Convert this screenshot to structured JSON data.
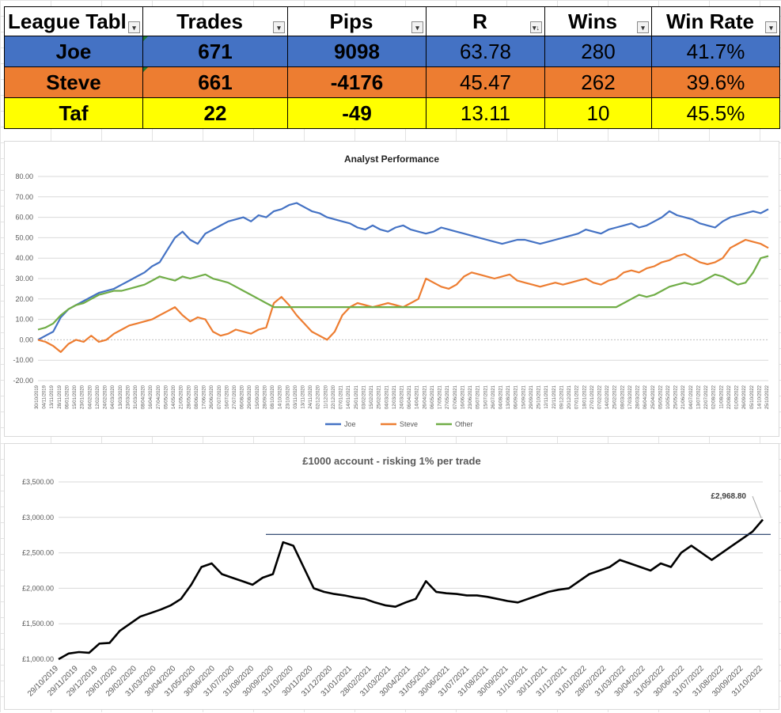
{
  "table": {
    "headers": [
      "League Tabl",
      "Trades",
      "Pips",
      "R",
      "Wins",
      "Win Rate"
    ],
    "rows": [
      {
        "name": "Joe",
        "trades": "671",
        "pips": "9098",
        "r": "63.78",
        "wins": "280",
        "win_rate": "41.7%"
      },
      {
        "name": "Steve",
        "trades": "661",
        "pips": "-4176",
        "r": "45.47",
        "wins": "262",
        "win_rate": "39.6%"
      },
      {
        "name": "Taf",
        "trades": "22",
        "pips": "-49",
        "r": "13.11",
        "wins": "10",
        "win_rate": "45.5%"
      }
    ]
  },
  "colors": {
    "joe": "#4472c4",
    "steve": "#ed7d31",
    "other": "#70ad47",
    "taf": "#ffff00",
    "equity": "#000000",
    "hline": "#1f3864"
  },
  "chart_data": [
    {
      "type": "line",
      "title": "Analyst Performance",
      "xlabel": "",
      "ylabel": "",
      "ylim": [
        -20,
        80
      ],
      "yticks": [
        "80.00",
        "70.00",
        "60.00",
        "50.00",
        "40.00",
        "30.00",
        "20.00",
        "10.00",
        "0.00",
        "-10.00",
        "-20.00"
      ],
      "grid": true,
      "legend_position": "bottom",
      "x_tick_labels": [
        "30/10/2019",
        "04/11/2019",
        "13/11/2019",
        "28/11/2019",
        "06/01/2020",
        "15/01/2020",
        "23/01/2020",
        "04/02/2020",
        "12/02/2020",
        "24/02/2020",
        "04/03/2020",
        "13/03/2020",
        "23/03/2020",
        "31/03/2020",
        "08/04/2020",
        "16/04/2020",
        "27/04/2020",
        "05/05/2020",
        "14/05/2020",
        "21/05/2020",
        "28/05/2020",
        "08/06/2020",
        "17/06/2020",
        "26/06/2020",
        "07/07/2020",
        "16/07/2020",
        "27/07/2020",
        "06/08/2020",
        "29/08/2020",
        "15/09/2020",
        "28/09/2020",
        "08/10/2020",
        "14/10/2020",
        "23/10/2020",
        "03/11/2020",
        "13/11/2020",
        "24/11/2020",
        "02/12/2020",
        "11/12/2020",
        "22/12/2020",
        "07/01/2021",
        "14/01/2021",
        "25/01/2021",
        "03/02/2021",
        "15/02/2021",
        "25/02/2021",
        "04/03/2021",
        "12/03/2021",
        "24/03/2021",
        "06/04/2021",
        "14/04/2021",
        "26/04/2021",
        "06/05/2021",
        "17/05/2021",
        "27/05/2021",
        "07/06/2021",
        "16/06/2021",
        "23/06/2021",
        "05/07/2021",
        "15/07/2021",
        "26/07/2021",
        "04/08/2021",
        "13/08/2021",
        "06/09/2021",
        "15/09/2021",
        "29/09/2021",
        "25/10/2021",
        "12/11/2021",
        "22/11/2021",
        "09/12/2021",
        "20/12/2021",
        "07/01/2022",
        "18/01/2022",
        "27/01/2022",
        "07/02/2022",
        "14/02/2022",
        "25/02/2022",
        "08/03/2022",
        "17/03/2022",
        "28/03/2022",
        "06/04/2022",
        "25/04/2022",
        "05/05/2022",
        "10/05/2022",
        "25/05/2022",
        "21/06/2022",
        "04/07/2022",
        "13/07/2022",
        "22/07/2022",
        "02/08/2022",
        "11/08/2022",
        "22/08/2022",
        "01/09/2022",
        "26/09/2022",
        "05/10/2022",
        "14/10/2022",
        "25/10/2022"
      ],
      "series": [
        {
          "name": "Joe",
          "color": "#4472c4",
          "values": [
            0,
            2,
            4,
            11,
            15,
            17,
            19,
            21,
            23,
            24,
            25,
            27,
            29,
            31,
            33,
            36,
            38,
            44,
            50,
            53,
            49,
            47,
            52,
            54,
            56,
            58,
            59,
            60,
            58,
            61,
            60,
            63,
            64,
            66,
            67,
            65,
            63,
            62,
            60,
            59,
            58,
            57,
            55,
            54,
            56,
            54,
            53,
            55,
            56,
            54,
            53,
            52,
            53,
            55,
            54,
            53,
            52,
            51,
            50,
            49,
            48,
            47,
            48,
            49,
            49,
            48,
            47,
            48,
            49,
            50,
            51,
            52,
            54,
            53,
            52,
            54,
            55,
            56,
            57,
            55,
            56,
            58,
            60,
            63,
            61,
            60,
            59,
            57,
            56,
            55,
            58,
            60,
            61,
            62,
            63,
            62,
            64
          ]
        },
        {
          "name": "Steve",
          "color": "#ed7d31",
          "values": [
            0,
            -1,
            -3,
            -6,
            -2,
            0,
            -1,
            2,
            -1,
            0,
            3,
            5,
            7,
            8,
            9,
            10,
            12,
            14,
            16,
            12,
            9,
            11,
            10,
            4,
            2,
            3,
            5,
            4,
            3,
            5,
            6,
            18,
            21,
            17,
            12,
            8,
            4,
            2,
            0,
            4,
            12,
            16,
            18,
            17,
            16,
            17,
            18,
            17,
            16,
            18,
            20,
            30,
            28,
            26,
            25,
            27,
            31,
            33,
            32,
            31,
            30,
            31,
            32,
            29,
            28,
            27,
            26,
            27,
            28,
            27,
            28,
            29,
            30,
            28,
            27,
            29,
            30,
            33,
            34,
            33,
            35,
            36,
            38,
            39,
            41,
            42,
            40,
            38,
            37,
            38,
            40,
            45,
            47,
            49,
            48,
            47,
            45
          ]
        },
        {
          "name": "Other",
          "color": "#70ad47",
          "values": [
            5,
            6,
            8,
            12,
            15,
            17,
            18,
            20,
            22,
            23,
            24,
            24,
            25,
            26,
            27,
            29,
            31,
            30,
            29,
            31,
            30,
            31,
            32,
            30,
            29,
            28,
            26,
            24,
            22,
            20,
            18,
            16,
            16,
            16,
            16,
            16,
            16,
            16,
            16,
            16,
            16,
            16,
            16,
            16,
            16,
            16,
            16,
            16,
            16,
            16,
            16,
            16,
            16,
            16,
            16,
            16,
            16,
            16,
            16,
            16,
            16,
            16,
            16,
            16,
            16,
            16,
            16,
            16,
            16,
            16,
            16,
            16,
            16,
            16,
            16,
            16,
            16,
            18,
            20,
            22,
            21,
            22,
            24,
            26,
            27,
            28,
            27,
            28,
            30,
            32,
            31,
            29,
            27,
            28,
            33,
            40,
            41
          ]
        }
      ]
    },
    {
      "type": "line",
      "title": "£1000 account - risking 1% per trade",
      "xlabel": "",
      "ylabel": "",
      "ylim": [
        1000,
        3500
      ],
      "yticks": [
        "£3,500.00",
        "£3,000.00",
        "£2,500.00",
        "£2,000.00",
        "£1,500.00",
        "£1,000.00"
      ],
      "grid": true,
      "x_tick_labels": [
        "29/10/2019",
        "29/11/2019",
        "29/12/2019",
        "29/01/2020",
        "29/02/2020",
        "31/03/2020",
        "30/04/2020",
        "31/05/2020",
        "30/06/2020",
        "31/07/2020",
        "31/08/2020",
        "30/09/2020",
        "31/10/2020",
        "30/11/2020",
        "31/12/2020",
        "31/01/2021",
        "28/02/2021",
        "31/03/2021",
        "30/04/2021",
        "31/05/2021",
        "30/06/2021",
        "31/07/2021",
        "31/08/2021",
        "30/09/2021",
        "31/10/2021",
        "30/11/2021",
        "31/12/2021",
        "31/01/2022",
        "28/02/2022",
        "31/03/2022",
        "30/04/2022",
        "31/05/2022",
        "30/06/2022",
        "31/07/2022",
        "31/08/2022",
        "30/09/2022",
        "31/10/2022"
      ],
      "reference_line": 2760,
      "annotation": "£2,968.80",
      "series": [
        {
          "name": "",
          "color": "#000000",
          "values": [
            1000,
            1080,
            1100,
            1090,
            1220,
            1230,
            1400,
            1500,
            1600,
            1650,
            1700,
            1760,
            1850,
            2050,
            2300,
            2350,
            2200,
            2150,
            2100,
            2050,
            2150,
            2200,
            2650,
            2600,
            2300,
            2000,
            1950,
            1920,
            1900,
            1870,
            1850,
            1800,
            1760,
            1740,
            1800,
            1850,
            2100,
            1950,
            1930,
            1920,
            1900,
            1900,
            1880,
            1850,
            1820,
            1800,
            1850,
            1900,
            1950,
            1980,
            2000,
            2100,
            2200,
            2250,
            2300,
            2400,
            2350,
            2300,
            2250,
            2350,
            2300,
            2500,
            2600,
            2500,
            2400,
            2500,
            2600,
            2700,
            2800,
            2968.8
          ]
        }
      ]
    }
  ]
}
